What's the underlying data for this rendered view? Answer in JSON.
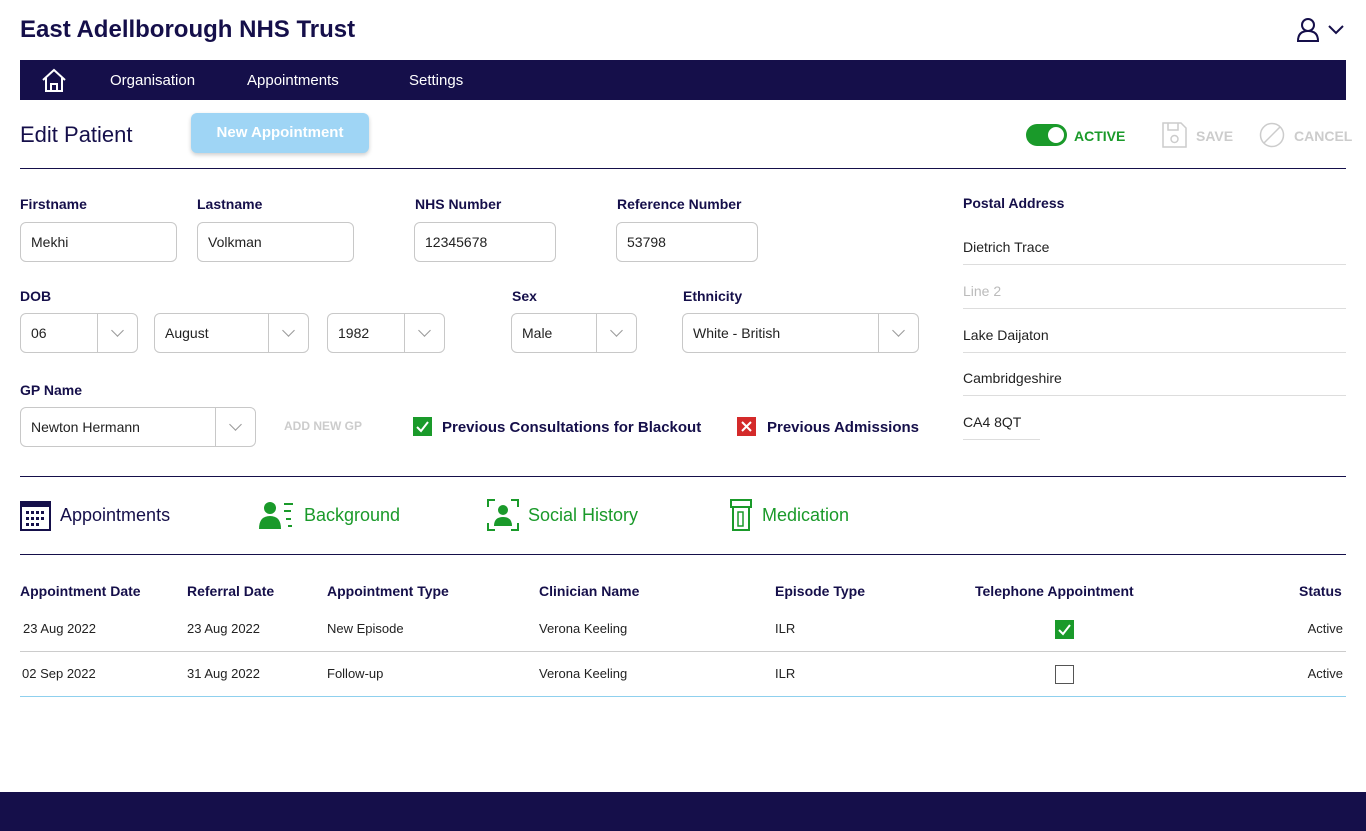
{
  "header": {
    "title": "East Adellborough NHS Trust",
    "user_icon": "user-icon"
  },
  "nav": {
    "items": [
      "Organisation",
      "Appointments",
      "Settings"
    ]
  },
  "toolbar": {
    "page_title": "Edit Patient",
    "new_appointment": "New Appointment",
    "active_label": "ACTIVE",
    "active": true,
    "save": "SAVE",
    "cancel": "CANCEL"
  },
  "form": {
    "firstname_label": "Firstname",
    "firstname": "Mekhi",
    "lastname_label": "Lastname",
    "lastname": "Volkman",
    "nhs_label": "NHS Number",
    "nhs": "12345678",
    "ref_label": "Reference Number",
    "ref": "53798",
    "dob_label": "DOB",
    "dob_day": "06",
    "dob_month": "August",
    "dob_year": "1982",
    "sex_label": "Sex",
    "sex": "Male",
    "ethnicity_label": "Ethnicity",
    "ethnicity": "White - British",
    "gp_label": "GP Name",
    "gp": "Newton Hermann",
    "add_gp": "ADD NEW GP",
    "prev_consult": "Previous Consultations for Blackout",
    "prev_consult_checked": true,
    "prev_admissions": "Previous Admissions",
    "prev_admissions_checked": false
  },
  "address": {
    "label": "Postal Address",
    "line1": "Dietrich Trace",
    "line2_placeholder": "Line 2",
    "town": "Lake Daijaton",
    "county": "Cambridgeshire",
    "postcode": "CA4 8QT"
  },
  "tabs": [
    "Appointments",
    "Background",
    "Social History",
    "Medication"
  ],
  "table": {
    "headers": [
      "Appointment Date",
      "Referral Date",
      "Appointment Type",
      "Clinician Name",
      "Episode Type",
      "Telephone Appointment",
      "Status"
    ],
    "rows": [
      {
        "date": "23 Aug 2022",
        "referral": "23 Aug 2022",
        "type": "New Episode",
        "clinician": "Verona Keeling",
        "episode": "ILR",
        "telephone": true,
        "status": "Active"
      },
      {
        "date": "02 Sep 2022",
        "referral": "31 Aug 2022",
        "type": "Follow-up",
        "clinician": "Verona Keeling",
        "episode": "ILR",
        "telephone": false,
        "status": "Active"
      }
    ]
  },
  "colors": {
    "navy": "#150f4a",
    "green": "#1a9a2a",
    "button": "#9fd5f5"
  }
}
